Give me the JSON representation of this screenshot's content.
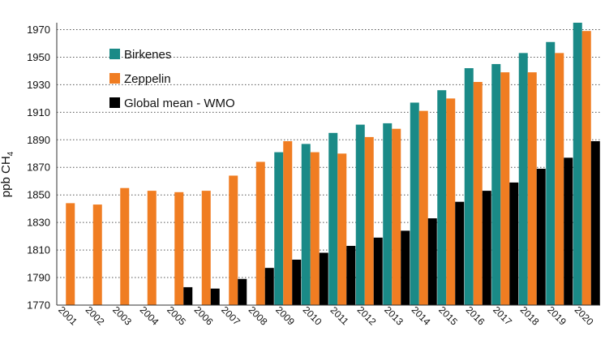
{
  "chart_data": {
    "type": "bar",
    "title": "",
    "xlabel": "",
    "ylabel": "ppb CH",
    "ylabel_subscript": "4",
    "ylim": [
      1770,
      1975
    ],
    "yticks": [
      1770,
      1790,
      1810,
      1830,
      1850,
      1870,
      1890,
      1910,
      1930,
      1950,
      1970
    ],
    "grid": "horizontal dotted",
    "legend_position": "top-left",
    "categories": [
      "2001",
      "2002",
      "2003",
      "2004",
      "2005",
      "2006",
      "2007",
      "2008",
      "2009",
      "2010",
      "2011",
      "2012",
      "2013",
      "2014",
      "2015",
      "2016",
      "2017",
      "2018",
      "2019",
      "2020"
    ],
    "series": [
      {
        "name": "Birkenes",
        "color": "#1a8a87",
        "values": [
          null,
          null,
          null,
          null,
          null,
          null,
          null,
          null,
          1881,
          1887,
          1895,
          1901,
          1902,
          1917,
          1926,
          1942,
          1945,
          1953,
          1961,
          1975
        ]
      },
      {
        "name": "Zeppelin",
        "color": "#f07d22",
        "values": [
          1844,
          1843,
          1855,
          1853,
          1852,
          1853,
          1864,
          1874,
          1889,
          1881,
          1880,
          1892,
          1898,
          1911,
          1920,
          1932,
          1939,
          1939,
          1953,
          1969
        ]
      },
      {
        "name": "Global mean - WMO",
        "color": "#000000",
        "values": [
          null,
          null,
          null,
          null,
          1783,
          1782,
          1789,
          1797,
          1803,
          1808,
          1813,
          1819,
          1824,
          1833,
          1845,
          1853,
          1859,
          1869,
          1877,
          1889
        ]
      }
    ]
  }
}
